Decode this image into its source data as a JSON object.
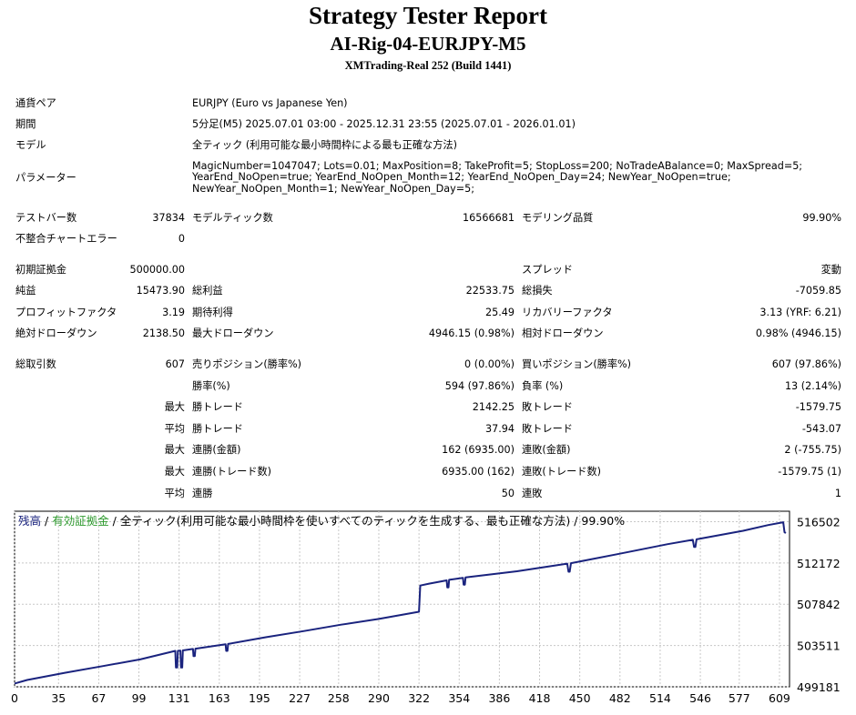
{
  "header": {
    "title": "Strategy Tester Report",
    "subtitle": "AI-Rig-04-EURJPY-M5",
    "server": "XMTrading-Real 252 (Build 1441)"
  },
  "info": {
    "pair_label": "通貨ペア",
    "pair": "EURJPY (Euro vs Japanese Yen)",
    "period_label": "期間",
    "period": "5分足(M5) 2025.07.01 03:00 - 2025.12.31 23:55 (2025.07.01 - 2026.01.01)",
    "model_label": "モデル",
    "model": "全ティック (利用可能な最小時間枠による最も正確な方法)",
    "params_label": "パラメーター",
    "params": [
      "MagicNumber=1047047; Lots=0.01; MaxPosition=8; TakeProfit=5; StopLoss=200; NoTradeABalance=0; MaxSpread=5;",
      "YearEnd_NoOpen=true; YearEnd_NoOpen_Month=12; YearEnd_NoOpen_Day=24; NewYear_NoOpen=true;",
      "NewYear_NoOpen_Month=1; NewYear_NoOpen_Day=5;"
    ]
  },
  "stats": {
    "bars_label": "テストバー数",
    "bars": "37834",
    "ticks_label": "モデルティック数",
    "ticks": "16566681",
    "quality_label": "モデリング品質",
    "quality": "99.90%",
    "mismatch_label": "不整合チャートエラー",
    "mismatch": "0",
    "deposit_label": "初期証拠金",
    "deposit": "500000.00",
    "spread_label": "スプレッド",
    "spread": "変動",
    "net_label": "純益",
    "net": "15473.90",
    "gross_profit_label": "総利益",
    "gross_profit": "22533.75",
    "gross_loss_label": "総損失",
    "gross_loss": "-7059.85",
    "pf_label": "プロフィットファクタ",
    "pf": "3.19",
    "expected_label": "期待利得",
    "expected": "25.49",
    "recovery_label": "リカバリーファクタ",
    "recovery": "3.13 (YRF: 6.21)",
    "abs_dd_label": "絶対ドローダウン",
    "abs_dd": "2138.50",
    "max_dd_label": "最大ドローダウン",
    "max_dd": "4946.15 (0.98%)",
    "rel_dd_label": "相対ドローダウン",
    "rel_dd": "0.98% (4946.15)",
    "total_label": "総取引数",
    "total": "607",
    "short_label": "売りポジション(勝率%)",
    "short": "0 (0.00%)",
    "long_label": "買いポジション(勝率%)",
    "long": "607 (97.86%)",
    "winrate_label": "勝率(%)",
    "winrate": "594 (97.86%)",
    "lossrate_label": "負率 (%)",
    "lossrate": "13 (2.14%)",
    "max_word": "最大",
    "avg_word": "平均",
    "win_trade_label": "勝トレード",
    "loss_trade_label": "敗トレード",
    "largest_win": "2142.25",
    "largest_loss": "-1579.75",
    "avg_win": "37.94",
    "avg_loss": "-543.07",
    "consec_wins_money_label": "連勝(金額)",
    "consec_wins_money": "162 (6935.00)",
    "consec_losses_money_label": "連敗(金額)",
    "consec_losses_money": "2 (-755.75)",
    "consec_profit_label": "連勝(トレード数)",
    "consec_profit": "6935.00 (162)",
    "consec_loss_label": "連敗(トレード数)",
    "consec_loss": "-1579.75 (1)",
    "avg_consec_win_label": "連勝",
    "avg_consec_win": "50",
    "avg_consec_loss_label": "連敗",
    "avg_consec_loss": "1"
  },
  "chart_data": {
    "type": "line",
    "legend": {
      "balance": "残高",
      "sep1": " / ",
      "equity": "有効証拠金",
      "sep2": " / ",
      "rest": "全ティック(利用可能な最小時間枠を使いすべてのティックを生成する、最も正確な方法) / 99.90%"
    },
    "x_ticks": [
      0,
      35,
      67,
      99,
      131,
      163,
      195,
      227,
      258,
      290,
      322,
      354,
      386,
      418,
      450,
      482,
      514,
      546,
      577,
      609
    ],
    "y_ticks": [
      "516502",
      "512172",
      "507842",
      "503511",
      "499181"
    ],
    "xlim": [
      0,
      617
    ],
    "ylim": [
      499181,
      517600
    ],
    "series": [
      {
        "x": [
          0,
          10,
          40,
          70,
          100,
          128,
          128.5,
          129.5,
          130,
          132,
          132.5,
          133.5,
          134,
          142,
          142.5,
          143.5,
          144,
          168,
          168.5,
          169.5,
          170,
          200,
          230,
          260,
          290,
          322,
          323,
          330,
          344,
          344.5,
          345.5,
          346,
          357,
          357.5,
          358.5,
          359,
          400,
          440,
          441,
          442,
          443,
          480,
          520,
          540,
          541,
          542,
          543,
          580,
          600,
          612,
          613,
          614
        ],
        "y": [
          499520,
          499900,
          500650,
          501350,
          502050,
          502950,
          501200,
          501200,
          502950,
          502980,
          501200,
          501200,
          503000,
          503150,
          502400,
          502400,
          503180,
          503650,
          502950,
          502950,
          503680,
          504380,
          505020,
          505700,
          506300,
          507050,
          509800,
          510000,
          510350,
          509600,
          509600,
          510400,
          510600,
          509900,
          509900,
          510650,
          511300,
          512100,
          511250,
          511250,
          512150,
          513100,
          514150,
          514600,
          513850,
          513850,
          514650,
          515550,
          516150,
          516450,
          515400,
          515300
        ]
      }
    ],
    "color": "#1a237e",
    "equity_color": "#2e9a2e"
  }
}
